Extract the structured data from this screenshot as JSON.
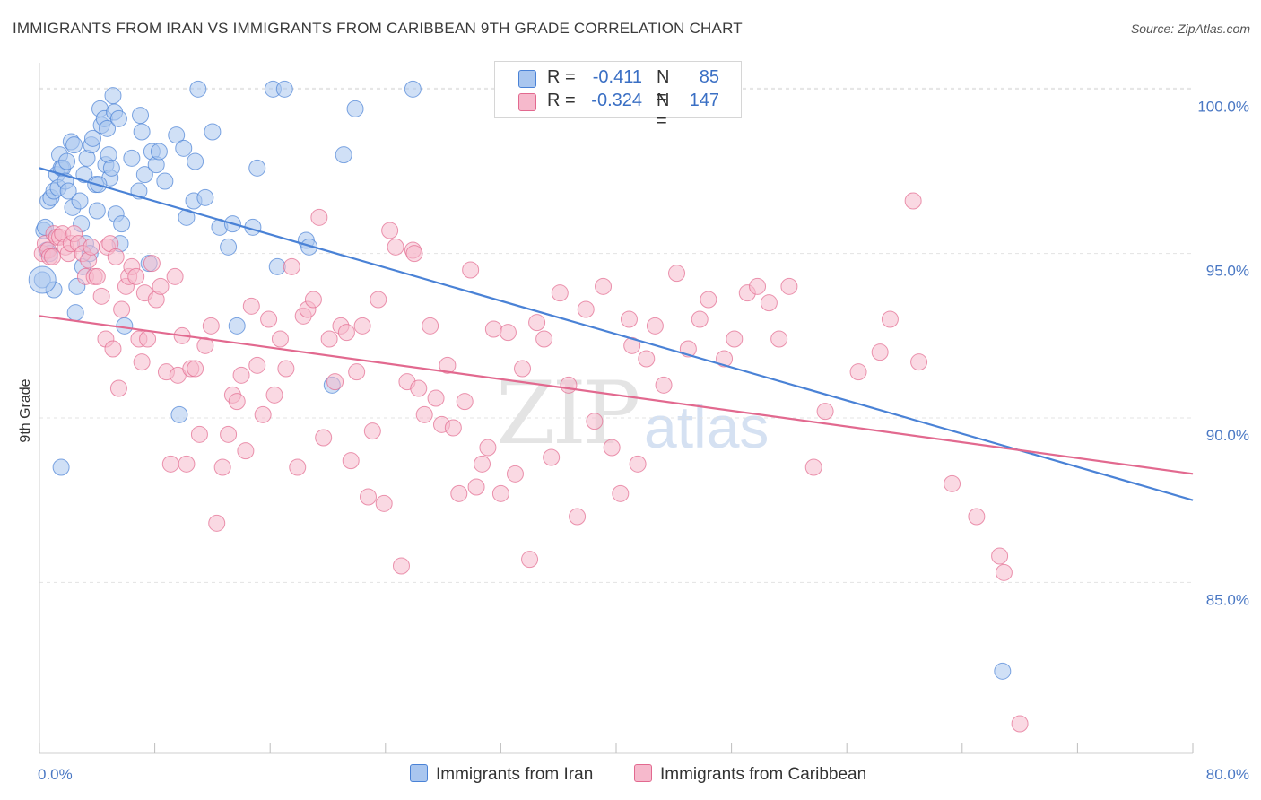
{
  "header": {
    "title": "IMMIGRANTS FROM IRAN VS IMMIGRANTS FROM CARIBBEAN 9TH GRADE CORRELATION CHART",
    "source": "Source: ZipAtlas.com"
  },
  "legend_top": {
    "rows": [
      {
        "r_label": "R =",
        "r_value": "-0.411",
        "n_label": "N =",
        "n_value": "85",
        "color": "#a9c6ef"
      },
      {
        "r_label": "R =",
        "r_value": "-0.324",
        "n_label": "N =",
        "n_value": "147",
        "color": "#f6b9cc"
      }
    ]
  },
  "legend_bottom": {
    "items": [
      {
        "label": "Immigrants from Iran",
        "color": "#a9c6ef"
      },
      {
        "label": "Immigrants from Caribbean",
        "color": "#f6b9cc"
      }
    ]
  },
  "watermark": {
    "main": "ZIP",
    "secondary": "atlas"
  },
  "chart_data": {
    "type": "scatter",
    "title": "IMMIGRANTS FROM IRAN VS IMMIGRANTS FROM CARIBBEAN 9TH GRADE CORRELATION CHART",
    "xlabel": "",
    "ylabel": "9th Grade",
    "xlim": [
      0,
      80
    ],
    "ylim": [
      79.8,
      100.8
    ],
    "x_tick_labels": [
      "0.0%",
      "80.0%"
    ],
    "y_ticks": [
      85,
      90,
      95,
      100
    ],
    "y_tick_labels": [
      "85.0%",
      "90.0%",
      "95.0%",
      "100.0%"
    ],
    "grid": true,
    "series": [
      {
        "name": "Immigrants from Iran",
        "color": "#4a82d6",
        "fill": "#a9c6ef",
        "trend": {
          "x": [
            0,
            80
          ],
          "y": [
            97.6,
            87.5
          ]
        },
        "points": [
          [
            0.2,
            94.2
          ],
          [
            0.3,
            95.7
          ],
          [
            0.4,
            95.8
          ],
          [
            0.5,
            95.1
          ],
          [
            0.6,
            96.6
          ],
          [
            0.8,
            96.7
          ],
          [
            1.0,
            96.9
          ],
          [
            1.2,
            97.4
          ],
          [
            1.3,
            97.0
          ],
          [
            1.4,
            98.0
          ],
          [
            1.5,
            97.6
          ],
          [
            1.6,
            97.6
          ],
          [
            1.8,
            97.2
          ],
          [
            1.9,
            97.8
          ],
          [
            2.0,
            96.9
          ],
          [
            2.2,
            98.4
          ],
          [
            2.3,
            96.4
          ],
          [
            2.4,
            98.3
          ],
          [
            2.5,
            93.2
          ],
          [
            2.6,
            94.0
          ],
          [
            2.8,
            96.6
          ],
          [
            3.0,
            94.6
          ],
          [
            3.1,
            97.4
          ],
          [
            3.2,
            95.3
          ],
          [
            3.3,
            97.9
          ],
          [
            3.5,
            95.0
          ],
          [
            3.6,
            98.3
          ],
          [
            3.7,
            98.5
          ],
          [
            3.9,
            97.1
          ],
          [
            4.0,
            96.3
          ],
          [
            4.2,
            99.4
          ],
          [
            4.3,
            98.9
          ],
          [
            4.5,
            99.1
          ],
          [
            4.6,
            97.7
          ],
          [
            4.7,
            98.8
          ],
          [
            4.8,
            98.0
          ],
          [
            4.9,
            97.3
          ],
          [
            5.0,
            97.6
          ],
          [
            5.1,
            99.8
          ],
          [
            5.2,
            99.3
          ],
          [
            5.3,
            96.2
          ],
          [
            5.5,
            99.1
          ],
          [
            5.6,
            95.3
          ],
          [
            5.7,
            95.9
          ],
          [
            5.9,
            92.8
          ],
          [
            6.4,
            97.9
          ],
          [
            6.9,
            96.9
          ],
          [
            7.0,
            99.2
          ],
          [
            7.1,
            98.7
          ],
          [
            7.3,
            97.4
          ],
          [
            7.6,
            94.7
          ],
          [
            7.8,
            98.1
          ],
          [
            8.1,
            97.7
          ],
          [
            8.3,
            98.1
          ],
          [
            8.7,
            97.2
          ],
          [
            9.5,
            98.6
          ],
          [
            9.7,
            90.1
          ],
          [
            10.0,
            98.2
          ],
          [
            10.2,
            96.1
          ],
          [
            10.7,
            96.6
          ],
          [
            10.8,
            97.8
          ],
          [
            11.0,
            100.0
          ],
          [
            11.5,
            96.7
          ],
          [
            12.0,
            98.7
          ],
          [
            12.5,
            95.8
          ],
          [
            13.1,
            95.2
          ],
          [
            13.4,
            95.9
          ],
          [
            13.7,
            92.8
          ],
          [
            14.8,
            95.8
          ],
          [
            15.1,
            97.6
          ],
          [
            16.2,
            100.0
          ],
          [
            16.5,
            94.6
          ],
          [
            17.0,
            100.0
          ],
          [
            18.5,
            95.4
          ],
          [
            18.7,
            95.2
          ],
          [
            20.3,
            91.0
          ],
          [
            21.1,
            98.0
          ],
          [
            21.9,
            99.4
          ],
          [
            25.9,
            100.0
          ],
          [
            66.8,
            82.3
          ],
          [
            1.5,
            88.5
          ],
          [
            1.0,
            93.9
          ],
          [
            0.7,
            95.0
          ],
          [
            2.9,
            95.9
          ],
          [
            4.1,
            97.1
          ]
        ]
      },
      {
        "name": "Immigrants from Caribbean",
        "color": "#e2698f",
        "fill": "#f6b9cc",
        "trend": {
          "x": [
            0,
            80
          ],
          "y": [
            93.1,
            88.3
          ]
        },
        "points": [
          [
            0.2,
            95.0
          ],
          [
            0.4,
            95.3
          ],
          [
            0.6,
            95.1
          ],
          [
            0.7,
            94.9
          ],
          [
            0.9,
            94.9
          ],
          [
            1.0,
            95.6
          ],
          [
            1.2,
            95.5
          ],
          [
            1.4,
            95.5
          ],
          [
            1.6,
            95.6
          ],
          [
            1.8,
            95.2
          ],
          [
            2.0,
            95.0
          ],
          [
            2.2,
            95.3
          ],
          [
            2.4,
            95.6
          ],
          [
            2.7,
            95.3
          ],
          [
            3.0,
            95.0
          ],
          [
            3.2,
            94.3
          ],
          [
            3.4,
            94.8
          ],
          [
            3.6,
            95.2
          ],
          [
            3.8,
            94.3
          ],
          [
            4.0,
            94.3
          ],
          [
            4.3,
            93.7
          ],
          [
            4.6,
            92.4
          ],
          [
            4.7,
            95.2
          ],
          [
            4.9,
            95.3
          ],
          [
            5.1,
            92.1
          ],
          [
            5.3,
            94.9
          ],
          [
            5.5,
            90.9
          ],
          [
            5.7,
            93.3
          ],
          [
            6.0,
            94.0
          ],
          [
            6.2,
            94.3
          ],
          [
            6.4,
            94.6
          ],
          [
            6.7,
            94.3
          ],
          [
            6.9,
            92.4
          ],
          [
            7.1,
            91.7
          ],
          [
            7.3,
            93.8
          ],
          [
            7.5,
            92.4
          ],
          [
            7.8,
            94.7
          ],
          [
            8.1,
            93.6
          ],
          [
            8.4,
            94.0
          ],
          [
            8.8,
            91.4
          ],
          [
            9.1,
            88.6
          ],
          [
            9.4,
            94.3
          ],
          [
            9.6,
            91.3
          ],
          [
            9.9,
            92.5
          ],
          [
            10.2,
            88.6
          ],
          [
            10.5,
            91.5
          ],
          [
            10.8,
            91.5
          ],
          [
            11.1,
            89.5
          ],
          [
            11.5,
            92.2
          ],
          [
            11.9,
            92.8
          ],
          [
            12.3,
            86.8
          ],
          [
            12.7,
            88.5
          ],
          [
            13.1,
            89.5
          ],
          [
            13.4,
            90.7
          ],
          [
            13.7,
            90.5
          ],
          [
            14.0,
            91.3
          ],
          [
            14.3,
            89.0
          ],
          [
            14.7,
            93.4
          ],
          [
            15.1,
            91.6
          ],
          [
            15.5,
            90.1
          ],
          [
            15.9,
            93.0
          ],
          [
            16.3,
            90.7
          ],
          [
            16.7,
            92.4
          ],
          [
            17.1,
            91.5
          ],
          [
            17.5,
            94.6
          ],
          [
            17.9,
            88.5
          ],
          [
            18.3,
            93.1
          ],
          [
            18.6,
            93.3
          ],
          [
            19.0,
            93.6
          ],
          [
            19.4,
            96.1
          ],
          [
            19.7,
            89.4
          ],
          [
            20.1,
            92.4
          ],
          [
            20.5,
            91.1
          ],
          [
            20.9,
            92.8
          ],
          [
            21.3,
            92.6
          ],
          [
            21.6,
            88.7
          ],
          [
            22.0,
            91.4
          ],
          [
            22.4,
            92.8
          ],
          [
            22.8,
            87.6
          ],
          [
            23.1,
            89.6
          ],
          [
            23.5,
            93.6
          ],
          [
            23.9,
            87.4
          ],
          [
            24.3,
            95.7
          ],
          [
            24.7,
            95.2
          ],
          [
            25.1,
            85.5
          ],
          [
            25.5,
            91.1
          ],
          [
            25.9,
            95.1
          ],
          [
            26.3,
            90.9
          ],
          [
            26.7,
            90.1
          ],
          [
            27.1,
            92.8
          ],
          [
            27.5,
            90.6
          ],
          [
            27.9,
            89.8
          ],
          [
            28.3,
            91.6
          ],
          [
            28.7,
            89.7
          ],
          [
            29.1,
            87.7
          ],
          [
            29.5,
            90.5
          ],
          [
            29.9,
            94.5
          ],
          [
            30.3,
            87.9
          ],
          [
            30.7,
            88.6
          ],
          [
            31.1,
            89.1
          ],
          [
            31.5,
            92.7
          ],
          [
            32.0,
            87.7
          ],
          [
            32.5,
            92.6
          ],
          [
            33.0,
            88.3
          ],
          [
            33.5,
            91.5
          ],
          [
            34.0,
            85.7
          ],
          [
            34.5,
            92.9
          ],
          [
            35.0,
            92.4
          ],
          [
            35.5,
            88.8
          ],
          [
            36.1,
            93.8
          ],
          [
            36.7,
            91.0
          ],
          [
            37.3,
            87.0
          ],
          [
            37.9,
            93.3
          ],
          [
            38.5,
            89.9
          ],
          [
            39.1,
            94.0
          ],
          [
            39.7,
            89.1
          ],
          [
            40.3,
            87.7
          ],
          [
            40.9,
            93.0
          ],
          [
            41.5,
            88.6
          ],
          [
            42.1,
            91.8
          ],
          [
            42.7,
            92.8
          ],
          [
            43.3,
            91.0
          ],
          [
            44.2,
            94.4
          ],
          [
            45.0,
            92.1
          ],
          [
            45.8,
            93.0
          ],
          [
            46.4,
            93.6
          ],
          [
            47.5,
            91.8
          ],
          [
            48.2,
            92.4
          ],
          [
            49.1,
            93.8
          ],
          [
            49.8,
            94.0
          ],
          [
            50.6,
            93.5
          ],
          [
            51.3,
            92.4
          ],
          [
            52.0,
            94.0
          ],
          [
            53.7,
            88.5
          ],
          [
            54.5,
            90.2
          ],
          [
            56.8,
            91.4
          ],
          [
            58.3,
            92.0
          ],
          [
            59.0,
            93.0
          ],
          [
            61.0,
            91.7
          ],
          [
            63.3,
            88.0
          ],
          [
            65.0,
            87.0
          ],
          [
            66.6,
            85.8
          ],
          [
            66.9,
            85.3
          ],
          [
            68.0,
            80.7
          ],
          [
            41.1,
            92.2
          ],
          [
            60.6,
            96.6
          ],
          [
            26.0,
            95.0
          ]
        ]
      }
    ]
  }
}
